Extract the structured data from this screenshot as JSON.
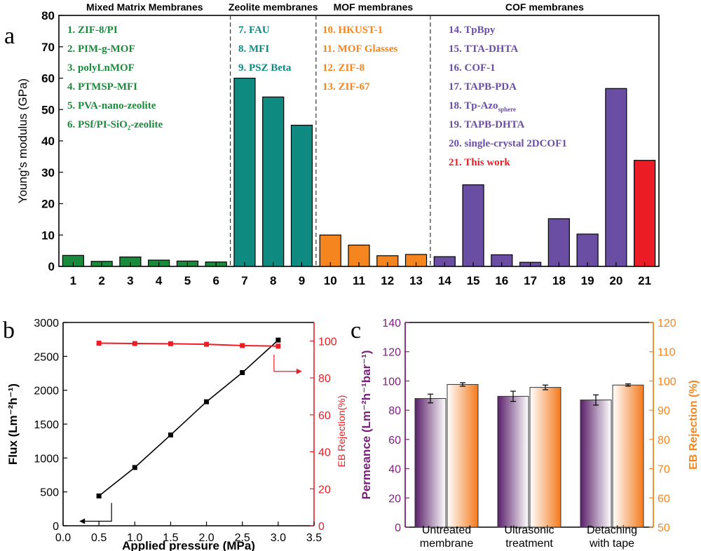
{
  "colors": {
    "mmm": "#1a8a3c",
    "zeolite": "#0e8a80",
    "mof": "#f5861f",
    "cof": "#6a4ea3",
    "thiswork": "#ec1c24",
    "flux": "#000000",
    "rejection": "#ee1c24",
    "perm_axis": "#7a1f7a",
    "rej_axis": "#f5861f"
  },
  "chart_data": [
    {
      "panel": "a",
      "type": "bar",
      "ylabel": "Young's modulus (GPa)",
      "ylim": [
        0,
        80
      ],
      "yticks": [
        "0",
        "10",
        "20",
        "30",
        "40",
        "50",
        "60",
        "70",
        "80"
      ],
      "categories": [
        "1",
        "2",
        "3",
        "4",
        "5",
        "6",
        "7",
        "8",
        "9",
        "10",
        "11",
        "12",
        "13",
        "14",
        "15",
        "16",
        "17",
        "18",
        "19",
        "20",
        "21"
      ],
      "values": [
        3.5,
        1.6,
        3.0,
        2.0,
        1.7,
        1.4,
        60,
        54,
        45,
        10,
        6.8,
        3.4,
        3.8,
        3.1,
        26,
        3.7,
        1.3,
        15.2,
        10.3,
        56.7,
        33.8
      ],
      "groups": [
        {
          "title": "Mixed Matrix Membranes",
          "color_key": "mmm",
          "start": 0,
          "end": 5,
          "entries": [
            "1. ZIF-8/PI",
            "2. PIM-g-MOF",
            "3. polyLnMOF",
            "4. PTMSP-MFI",
            "5. PVA-nano-zeolite",
            "6. PSf/PI-SiO₂-zeolite"
          ]
        },
        {
          "title": "Zeolite membranes",
          "color_key": "zeolite",
          "start": 6,
          "end": 8,
          "entries": [
            "7. FAU",
            "8. MFI",
            "9. PSZ Beta"
          ]
        },
        {
          "title": "MOF membranes",
          "color_key": "mof",
          "start": 9,
          "end": 12,
          "entries": [
            "10. HKUST-1",
            "11. MOF Glasses",
            "12. ZIF-8",
            "13. ZIF-67"
          ]
        },
        {
          "title": "COF membranes",
          "color_key": "cof",
          "start": 13,
          "end": 20,
          "entries": [
            "14. TpBpy",
            "15. TTA-DHTA",
            "16. COF-1",
            "17. TAPB-PDA",
            "18. Tp-Azo",
            "19. TAPB-DHTA",
            "20. single-crystal 2DCOF1",
            "21. This work"
          ]
        }
      ],
      "entry18_subscript": "sphere"
    },
    {
      "panel": "b",
      "type": "line",
      "xlabel": "Applied pressure (MPa)",
      "ylabel": "Flux (Lm⁻²h⁻¹)",
      "y2label": "EB Rejection(%)",
      "xlim": [
        0,
        3.5
      ],
      "ylim": [
        0,
        3000
      ],
      "y2lim": [
        0,
        110
      ],
      "xticks": [
        "0.0",
        "0.5",
        "1.0",
        "1.5",
        "2.0",
        "2.5",
        "3.0",
        "3.5"
      ],
      "yticks": [
        "0",
        "500",
        "1000",
        "1500",
        "2000",
        "2500",
        "3000"
      ],
      "y2ticks": [
        "0",
        "20",
        "40",
        "60",
        "80",
        "100"
      ],
      "x": [
        0.5,
        1.0,
        1.5,
        2.0,
        2.5,
        3.0
      ],
      "series": [
        {
          "axis": "left",
          "values": [
            440,
            860,
            1340,
            1830,
            2260,
            2740
          ]
        },
        {
          "axis": "right",
          "values": [
            98.8,
            98.6,
            98.5,
            98.2,
            97.5,
            97.2
          ]
        }
      ]
    },
    {
      "panel": "c",
      "type": "bar",
      "ylabel": "Permeance (Lm⁻²h⁻¹bar⁻¹)",
      "y2label": "EB Rejection (%)",
      "ylim": [
        0,
        140
      ],
      "y2lim": [
        50,
        120
      ],
      "yticks": [
        "0",
        "20",
        "40",
        "60",
        "80",
        "100",
        "120",
        "140"
      ],
      "y2ticks": [
        "50",
        "60",
        "70",
        "80",
        "90",
        "100",
        "110",
        "120"
      ],
      "categories": [
        [
          "Untreated",
          "membrane"
        ],
        [
          "Ultrasonic",
          "treatment"
        ],
        [
          "Detaching",
          "with tape"
        ]
      ],
      "series": [
        {
          "axis": "left",
          "values": [
            88,
            89.5,
            87
          ],
          "errors": [
            3,
            3.5,
            3.5
          ]
        },
        {
          "axis": "right",
          "values": [
            98.8,
            97.8,
            98.6
          ],
          "errors": [
            0.6,
            0.8,
            0.4
          ]
        }
      ]
    }
  ],
  "panel_labels": [
    "a",
    "b",
    "c"
  ]
}
